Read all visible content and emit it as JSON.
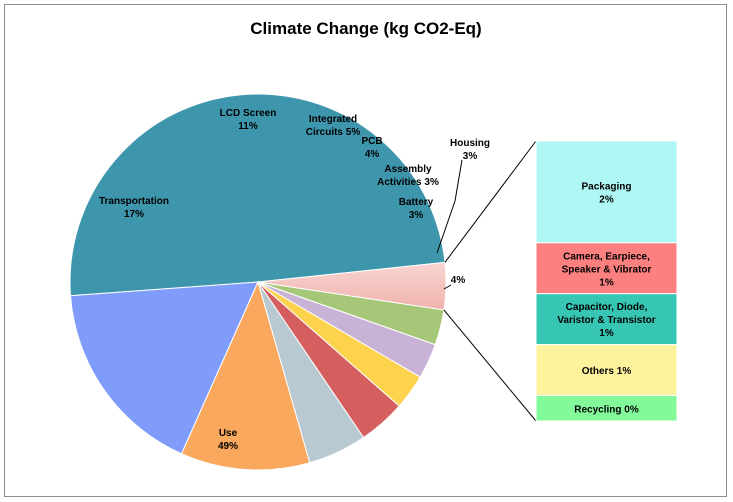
{
  "chart_data": {
    "type": "pie",
    "title": "Climate Change (kg CO2-Eq)",
    "slices": [
      {
        "label": "Use",
        "value": 49,
        "value_label": "49%",
        "color": "#3E96AD"
      },
      {
        "label": "Transportation",
        "value": 17,
        "value_label": "17%",
        "color": "#7F9CFB"
      },
      {
        "label": "LCD Screen",
        "value": 11,
        "value_label": "11%",
        "color": "#F9A85D"
      },
      {
        "label": "Integrated Circuits",
        "value": 5,
        "value_label": "5%",
        "color": "#B9C9D1"
      },
      {
        "label": "PCB",
        "value": 4,
        "value_label": "4%",
        "color": "#D55F5F"
      },
      {
        "label": "Assembly Activities",
        "value": 3,
        "value_label": "3%",
        "color": "#FDD34D"
      },
      {
        "label": "Battery",
        "value": 3,
        "value_label": "3%",
        "color": "#C8B2D6"
      },
      {
        "label": "Housing",
        "value": 3,
        "value_label": "3%",
        "color": "#A6C678"
      },
      {
        "label": "",
        "value": 4,
        "value_label": "4%",
        "color": "#F7C9C4"
      }
    ],
    "breakout": {
      "of_slice_value_label": "4%",
      "items": [
        {
          "label": "Packaging",
          "value": 2,
          "value_label": "2%",
          "color": "#AEF7F4"
        },
        {
          "label": "Camera, Earpiece, Speaker & Vibrator",
          "value": 1,
          "value_label": "1%",
          "color": "#FC8080"
        },
        {
          "label": "Capacitor, Diode, Varistor & Transistor",
          "value": 1,
          "value_label": "1%",
          "color": "#37C6B3"
        },
        {
          "label": "Others",
          "value": 1,
          "value_label": "1%",
          "color": "#FEF39D"
        },
        {
          "label": "Recycling",
          "value": 0,
          "value_label": "0%",
          "color": "#82FA99"
        }
      ]
    }
  }
}
